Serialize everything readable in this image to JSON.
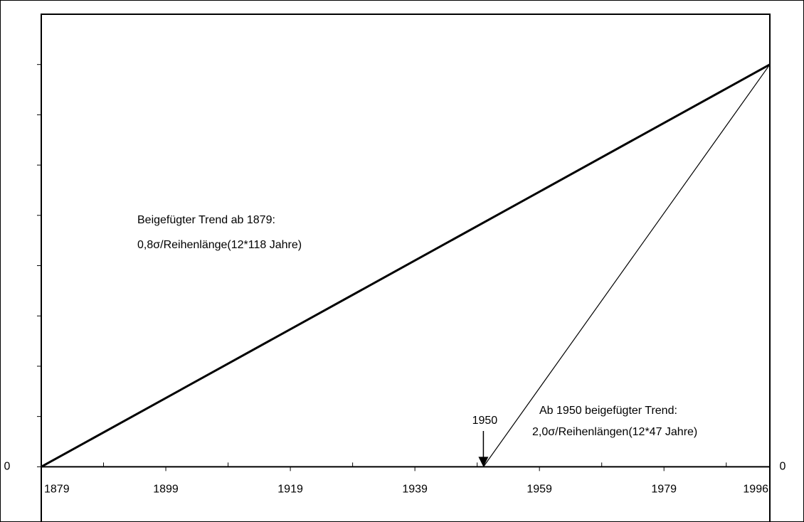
{
  "chart_data": {
    "type": "line",
    "series": [
      {
        "name": "Beigefügter Trend ab 1879",
        "color": "#000000",
        "width": 3,
        "x": [
          1879,
          1996
        ],
        "values": [
          0,
          8
        ]
      },
      {
        "name": "Ab 1950 beigefügter Trend",
        "color": "#000000",
        "width": 1.2,
        "x": [
          1950,
          1996
        ],
        "values": [
          0,
          8
        ]
      }
    ],
    "xlim": [
      1879,
      1996
    ],
    "xticks": [
      1879,
      1899,
      1919,
      1939,
      1959,
      1979,
      1996
    ],
    "xminor_ticks": [
      1889,
      1909,
      1929,
      1949,
      1969,
      1989
    ],
    "ylim": [
      -0.9,
      9
    ],
    "yticks": [
      0
    ],
    "yminor_ticks": [
      1,
      2,
      3,
      4,
      5,
      6,
      7,
      8
    ],
    "y2lim": [
      -0.9,
      9
    ],
    "y2ticks": [
      0
    ],
    "annotations": [
      "Beigefügter Trend ab 1879:",
      "0,8σ/Reihenlänge(12*118 Jahre)",
      "Ab 1950 beigefügter Trend:",
      "2,0σ/Reihenlängen(12*47 Jahre)"
    ],
    "x_marker": 1950
  }
}
